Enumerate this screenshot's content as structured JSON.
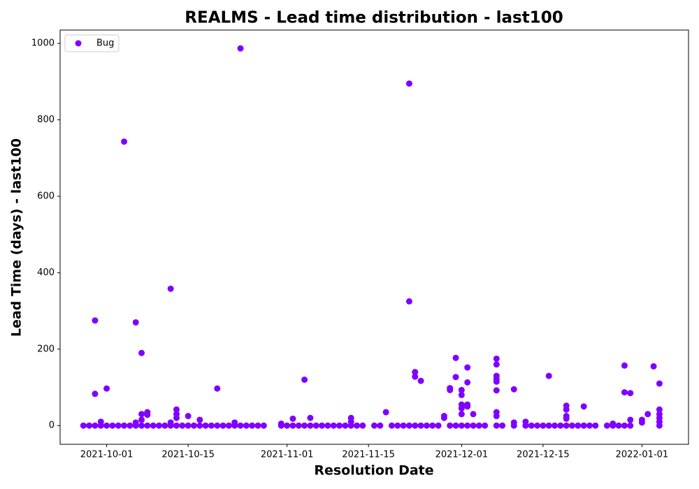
{
  "chart_data": {
    "type": "scatter",
    "title": "REALMS - Lead time distribution - last100",
    "x_label": "Resolution Date",
    "y_label": "Lead Time (days) - last100",
    "xlim": [
      "2021-09-23",
      "2022-01-09"
    ],
    "xticks": [
      "2021-10-01",
      "2021-10-15",
      "2021-11-01",
      "2021-11-15",
      "2021-12-01",
      "2021-12-15",
      "2022-01-01"
    ],
    "ylim": [
      -49,
      1035
    ],
    "yticks": [
      0,
      200,
      400,
      600,
      800,
      1000
    ],
    "legend": "upper left",
    "x": [
      "2021-09-27",
      "2021-09-28",
      "2021-09-29",
      "2021-09-30",
      "2021-10-01",
      "2021-10-02",
      "2021-10-03",
      "2021-10-04",
      "2021-10-05",
      "2021-10-06",
      "2021-10-07",
      "2021-10-08",
      "2021-10-09",
      "2021-10-10",
      "2021-10-11",
      "2021-10-12",
      "2021-10-13",
      "2021-10-14",
      "2021-10-15",
      "2021-10-16",
      "2021-10-17",
      "2021-10-18",
      "2021-10-19",
      "2021-10-20",
      "2021-10-21",
      "2021-10-22",
      "2021-10-23",
      "2021-10-24",
      "2021-10-25",
      "2021-10-26",
      "2021-10-27",
      "2021-10-28",
      "2021-10-31",
      "2021-11-01",
      "2021-11-02",
      "2021-11-03",
      "2021-11-04",
      "2021-11-05",
      "2021-11-06",
      "2021-11-07",
      "2021-11-08",
      "2021-11-09",
      "2021-11-10",
      "2021-11-11",
      "2021-11-12",
      "2021-11-13",
      "2021-11-14",
      "2021-11-16",
      "2021-11-17",
      "2021-11-19",
      "2021-11-20",
      "2021-11-21",
      "2021-11-22",
      "2021-11-23",
      "2021-11-24",
      "2021-11-25",
      "2021-11-26",
      "2021-11-27",
      "2021-11-29",
      "2021-11-30",
      "2021-12-01",
      "2021-12-02",
      "2021-12-03",
      "2021-12-04",
      "2021-12-05",
      "2021-12-07",
      "2021-12-08",
      "2021-12-10",
      "2021-12-12",
      "2021-12-13",
      "2021-12-14",
      "2021-12-15",
      "2021-12-16",
      "2021-12-17",
      "2021-12-18",
      "2021-12-19",
      "2021-12-20",
      "2021-12-21",
      "2021-12-22",
      "2021-12-23",
      "2021-12-24",
      "2021-12-26",
      "2021-12-27",
      "2021-12-28",
      "2021-12-29",
      "2021-12-30",
      "2022-01-04",
      "2021-09-29",
      "2021-09-29",
      "2021-09-30",
      "2021-10-01",
      "2021-10-04",
      "2021-10-06",
      "2021-10-06",
      "2021-10-07",
      "2021-10-07",
      "2021-10-07",
      "2021-10-08",
      "2021-10-08",
      "2021-10-12",
      "2021-10-12",
      "2021-10-13",
      "2021-10-13",
      "2021-10-13",
      "2021-10-15",
      "2021-10-17",
      "2021-10-20",
      "2021-10-23",
      "2021-10-24",
      "2021-10-31",
      "2021-11-02",
      "2021-11-04",
      "2021-11-05",
      "2021-11-12",
      "2021-11-12",
      "2021-11-18",
      "2021-11-22",
      "2021-11-22",
      "2021-11-23",
      "2021-11-23",
      "2021-11-24",
      "2021-11-28",
      "2021-11-28",
      "2021-11-29",
      "2021-11-29",
      "2021-11-30",
      "2021-11-30",
      "2021-12-01",
      "2021-12-01",
      "2021-12-01",
      "2021-12-01",
      "2021-12-01",
      "2021-12-02",
      "2021-12-02",
      "2021-12-02",
      "2021-12-02",
      "2021-12-03",
      "2021-12-07",
      "2021-12-07",
      "2021-12-07",
      "2021-12-07",
      "2021-12-07",
      "2021-12-07",
      "2021-12-07",
      "2021-12-07",
      "2021-12-10",
      "2021-12-10",
      "2021-12-12",
      "2021-12-16",
      "2021-12-19",
      "2021-12-19",
      "2021-12-19",
      "2021-12-19",
      "2021-12-22",
      "2021-12-27",
      "2021-12-29",
      "2021-12-29",
      "2021-12-30",
      "2021-12-30",
      "2022-01-01",
      "2022-01-01",
      "2022-01-02",
      "2022-01-03",
      "2022-01-04",
      "2022-01-04",
      "2022-01-04",
      "2022-01-04",
      "2022-01-04"
    ],
    "series": [
      {
        "name": "Bug",
        "color": "#8000ff",
        "values": [
          0,
          0,
          0,
          0,
          0,
          0,
          0,
          0,
          0,
          0,
          0,
          0,
          0,
          0,
          0,
          0,
          0,
          0,
          0,
          0,
          0,
          0,
          0,
          0,
          0,
          0,
          0,
          0,
          0,
          0,
          0,
          0,
          0,
          0,
          0,
          0,
          0,
          0,
          0,
          0,
          0,
          0,
          0,
          0,
          0,
          0,
          0,
          0,
          0,
          0,
          0,
          0,
          0,
          0,
          0,
          0,
          0,
          0,
          0,
          0,
          0,
          0,
          0,
          0,
          0,
          0,
          0,
          0,
          0,
          0,
          0,
          0,
          0,
          0,
          0,
          0,
          0,
          0,
          0,
          0,
          0,
          0,
          0,
          0,
          0,
          0,
          0,
          275,
          83,
          10,
          97,
          743,
          270,
          8,
          190,
          30,
          15,
          35,
          28,
          358,
          8,
          42,
          30,
          20,
          25,
          15,
          97,
          8,
          987,
          5,
          18,
          120,
          20,
          20,
          10,
          35,
          895,
          325,
          140,
          128,
          117,
          25,
          20,
          98,
          93,
          177,
          127,
          93,
          80,
          55,
          45,
          30,
          152,
          113,
          55,
          50,
          30,
          175,
          160,
          130,
          122,
          115,
          92,
          35,
          25,
          95,
          8,
          10,
          130,
          52,
          42,
          25,
          18,
          50,
          5,
          157,
          87,
          85,
          15,
          8,
          15,
          30,
          155,
          110,
          42,
          30,
          20,
          10
        ]
      }
    ]
  }
}
